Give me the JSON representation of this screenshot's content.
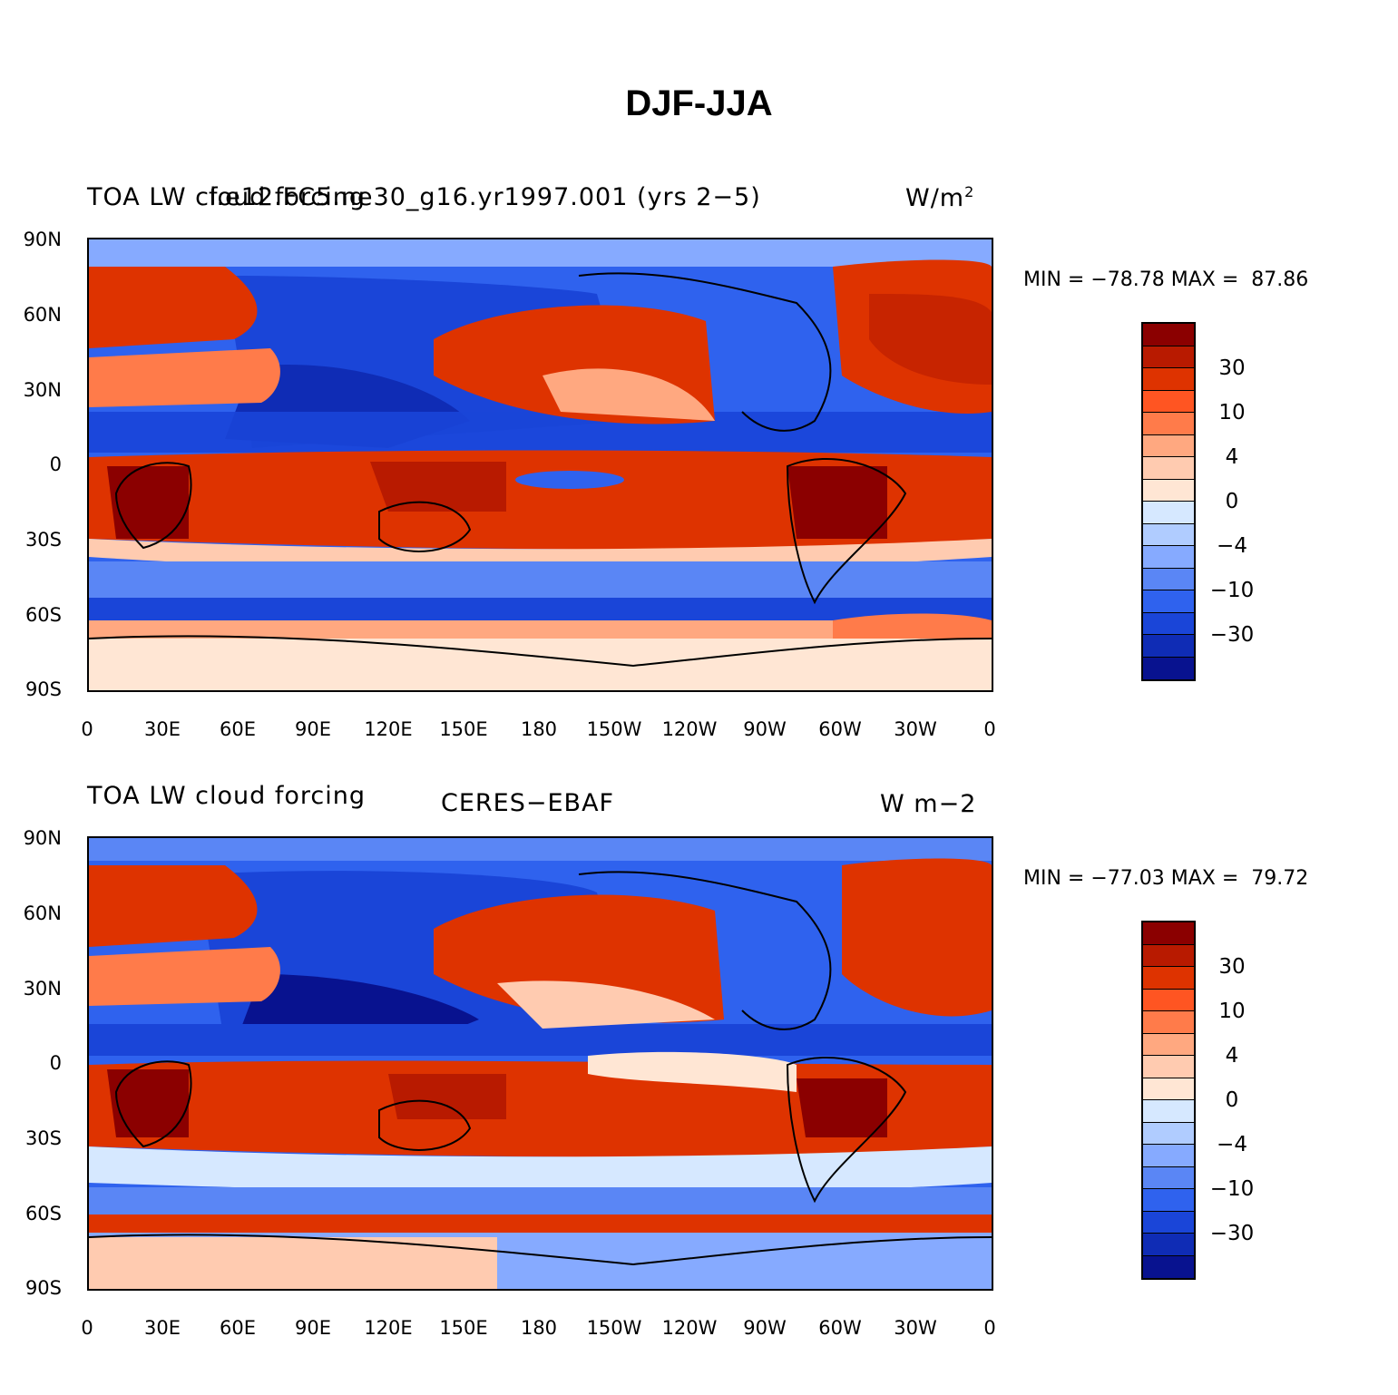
{
  "figure_title": "DJF-JJA",
  "colors": {
    "levels": [
      "#8b0000",
      "#b81a00",
      "#de3300",
      "#ff5522",
      "#ff7b4a",
      "#ffa880",
      "#ffcbb0",
      "#ffe6d4",
      "#d6e8ff",
      "#b0ccff",
      "#86aaff",
      "#5a86f5",
      "#2f62ee",
      "#1a45d8",
      "#0f2cb5",
      "#08128f"
    ]
  },
  "colorbar_labels": [
    "30",
    "10",
    "4",
    "0",
    "−4",
    "−10",
    "−30"
  ],
  "lat_labels": [
    "90N",
    "60N",
    "30N",
    "0",
    "30S",
    "60S",
    "90S"
  ],
  "lon_labels": [
    "0",
    "30E",
    "60E",
    "90E",
    "120E",
    "150E",
    "180",
    "150W",
    "120W",
    "90W",
    "60W",
    "30W",
    "0"
  ],
  "panels": [
    {
      "left_title": "TOA LW cloud forcing",
      "center_title": "f.e12.FC5.ne30_g16.yr1997.001 (yrs 2−5)",
      "units": "W/m",
      "units_sup": "2",
      "min_max": "MIN = −78.78 MAX =  87.86"
    },
    {
      "left_title": "TOA LW cloud forcing",
      "center_title": "CERES−EBAF",
      "units": "W m−2",
      "units_sup": "",
      "min_max": "MIN = −77.03 MAX =  79.72"
    }
  ]
}
